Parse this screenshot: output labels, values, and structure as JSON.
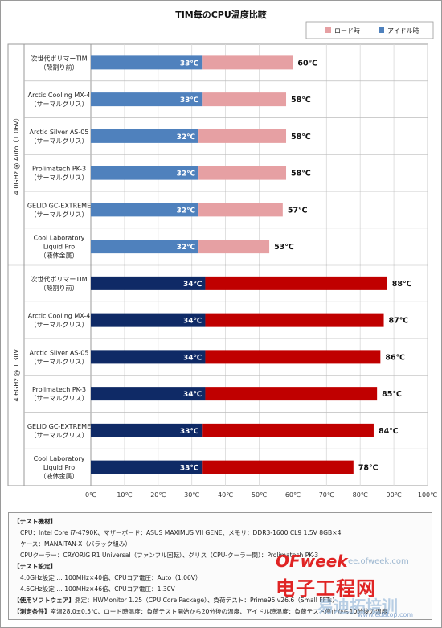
{
  "chart_data": {
    "type": "bar",
    "orientation": "horizontal",
    "stacked": true,
    "title": "TIM毎のCPU温度比較",
    "xlim": [
      0,
      100
    ],
    "x_ticks": [
      "0℃",
      "10℃",
      "20℃",
      "30℃",
      "40℃",
      "50℃",
      "60℃",
      "70℃",
      "80℃",
      "90℃",
      "100℃"
    ],
    "legend": {
      "position": "top-right",
      "items": [
        {
          "label": "ロード時"
        },
        {
          "label": "アイドル時"
        }
      ]
    },
    "groups": [
      {
        "label": "4.0GHz @ Auto（1.06V）",
        "idle_color": "#4f81bd",
        "load_color": "#e6a0a3",
        "rows": [
          {
            "name": [
              "次世代ポリマーTIM",
              "（殻割り前）"
            ],
            "idle": 33,
            "load": 60,
            "idle_label": "33℃",
            "load_label": "60℃"
          },
          {
            "name": [
              "Arctic Cooling MX-4",
              "（サーマルグリス）"
            ],
            "idle": 33,
            "load": 58,
            "idle_label": "33℃",
            "load_label": "58℃"
          },
          {
            "name": [
              "Arctic Silver AS-05",
              "（サーマルグリス）"
            ],
            "idle": 32,
            "load": 58,
            "idle_label": "32℃",
            "load_label": "58℃"
          },
          {
            "name": [
              "Prolimatech PK-3",
              "（サーマルグリス）"
            ],
            "idle": 32,
            "load": 58,
            "idle_label": "32℃",
            "load_label": "58℃"
          },
          {
            "name": [
              "GELID GC-EXTREME",
              "（サーマルグリス）"
            ],
            "idle": 32,
            "load": 57,
            "idle_label": "32℃",
            "load_label": "57℃"
          },
          {
            "name": [
              "Cool Laboratory",
              "Liquid Pro",
              "（液体金属）"
            ],
            "idle": 32,
            "load": 53,
            "idle_label": "32℃",
            "load_label": "53℃"
          }
        ]
      },
      {
        "label": "4.6GHz @ 1.30V",
        "idle_color": "#0f2a66",
        "load_color": "#c00000",
        "rows": [
          {
            "name": [
              "次世代ポリマーTIM",
              "（殻割り前）"
            ],
            "idle": 34,
            "load": 88,
            "idle_label": "34℃",
            "load_label": "88℃"
          },
          {
            "name": [
              "Arctic Cooling MX-4",
              "（サーマルグリス）"
            ],
            "idle": 34,
            "load": 87,
            "idle_label": "34℃",
            "load_label": "87℃"
          },
          {
            "name": [
              "Arctic Silver AS-05",
              "（サーマルグリス）"
            ],
            "idle": 34,
            "load": 86,
            "idle_label": "34℃",
            "load_label": "86℃"
          },
          {
            "name": [
              "Prolimatech PK-3",
              "（サーマルグリス）"
            ],
            "idle": 34,
            "load": 85,
            "idle_label": "34℃",
            "load_label": "85℃"
          },
          {
            "name": [
              "GELID GC-EXTREME",
              "（サーマルグリス）"
            ],
            "idle": 33,
            "load": 84,
            "idle_label": "33℃",
            "load_label": "84℃"
          },
          {
            "name": [
              "Cool Laboratory",
              "Liquid Pro",
              "（液体金属）"
            ],
            "idle": 33,
            "load": 78,
            "idle_label": "33℃",
            "load_label": "78℃"
          }
        ]
      }
    ]
  },
  "notes": {
    "test_env_heading": "【テスト機材】",
    "cpu_line": "CPU：Intel Core i7-4790K、マザーボード：ASUS MAXIMUS VII GENE、メモリ：DDR3-1600 CL9 1.5V 8GB×4",
    "case_line": "ケース：MANAITAN-X（バラック組み）",
    "cooler_line": "CPUクーラー：CRYORIG R1 Universal（ファンフル回転）、グリス（CPU-クーラー間）：Prolimatech PK-3",
    "settings_heading": "【テスト設定】",
    "setting_1": "4.0GHz設定 … 100MHz×40倍、CPUコア電圧：Auto（1.06V）",
    "setting_2": "4.6GHz設定 … 100MHz×46倍、CPUコア電圧：1.30V",
    "software_heading": "【使用ソフトウェア】",
    "software_text": "測定：HWMonitor 1.25（CPU Core Package）、負荷テスト：Prime95 v26.6（Small FFTs）",
    "conditions_heading": "【測定条件】",
    "conditions_text": "室温28.0±0.5℃、ロード時温度：負荷テスト開始から20分後の温度、アイドル時温度：負荷テスト停止から10分後の温度"
  },
  "watermark": {
    "brand": "OFweek",
    "site": "ee.ofweek.com",
    "name": "电子工程网",
    "sub": "易迪拓培训",
    "url": "www.edatop.com"
  }
}
